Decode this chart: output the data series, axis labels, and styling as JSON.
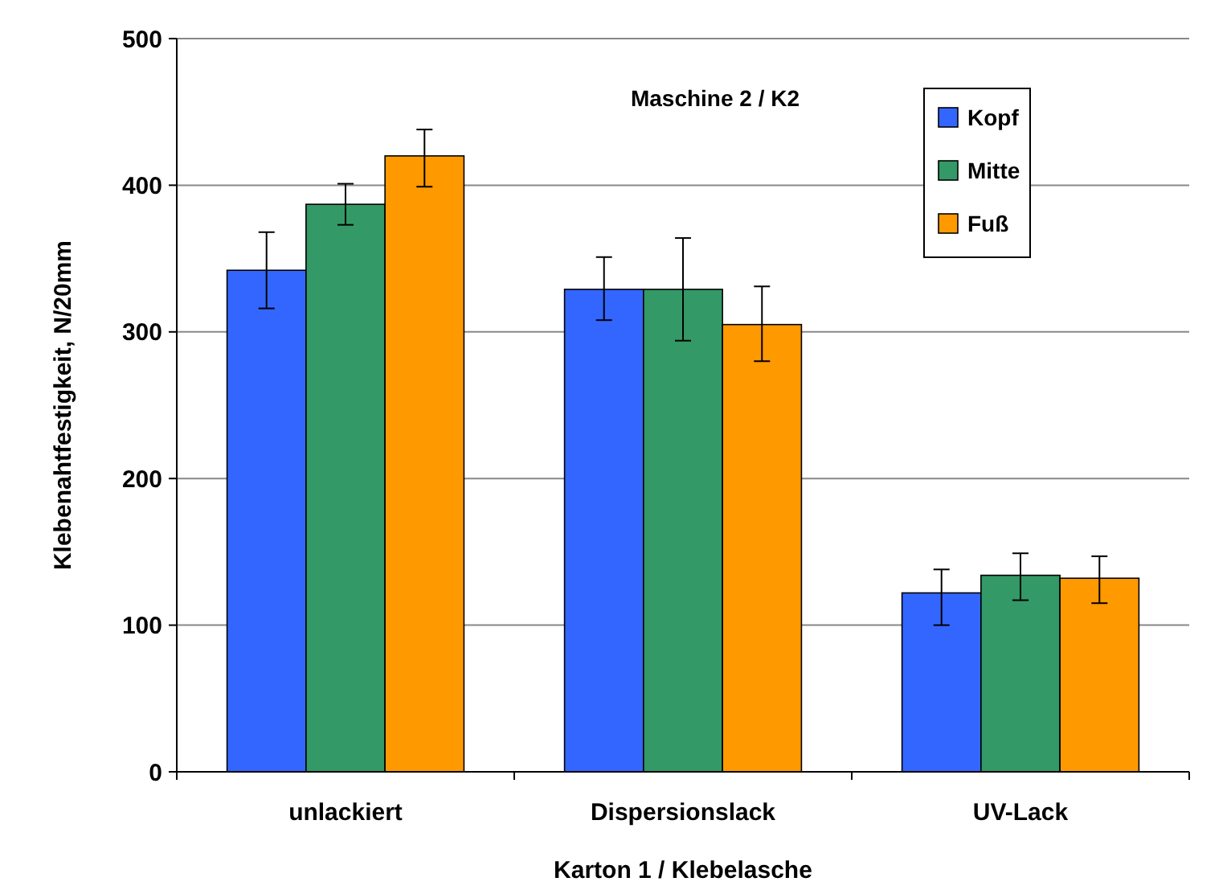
{
  "chart_data": {
    "type": "bar",
    "title": "Maschine 2 / K2",
    "xlabel": "Karton 1 / Klebelasche",
    "ylabel": "Klebenahtfestigkeit, N/20mm",
    "categories": [
      "unlackiert",
      "Dispersionslack",
      "UV-Lack"
    ],
    "series": [
      {
        "name": "Kopf",
        "color": "#3366ff",
        "values": [
          342,
          329,
          122
        ],
        "errors": [
          [
            316,
            368
          ],
          [
            308,
            351
          ],
          [
            100,
            138
          ]
        ]
      },
      {
        "name": "Mitte",
        "color": "#339966",
        "values": [
          387,
          329,
          134
        ],
        "errors": [
          [
            373,
            401
          ],
          [
            294,
            364
          ],
          [
            117,
            149
          ]
        ]
      },
      {
        "name": "Fuß",
        "color": "#ff9900",
        "values": [
          420,
          305,
          132
        ],
        "errors": [
          [
            399,
            438
          ],
          [
            280,
            331
          ],
          [
            115,
            147
          ]
        ]
      }
    ],
    "ylim": [
      0,
      500
    ],
    "yticks": [
      0,
      100,
      200,
      300,
      400,
      500
    ],
    "grid": "y",
    "legend": "top right"
  }
}
